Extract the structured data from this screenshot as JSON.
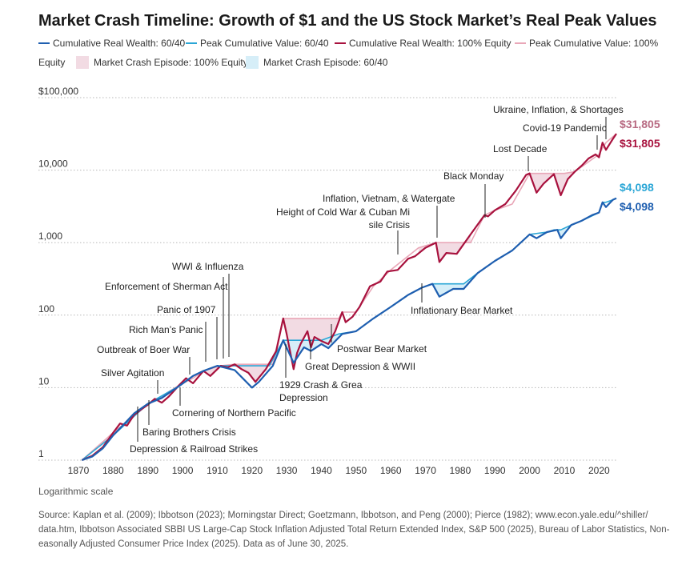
{
  "chart_data": {
    "type": "line",
    "title": "Market Crash Timeline: Growth of $1 and the US Stock Market’s Real Peak Values",
    "scale": "log",
    "xlim": [
      1870,
      2025
    ],
    "ylim": [
      1,
      100000
    ],
    "x_ticks": [
      "1870",
      "1880",
      "1890",
      "1900",
      "1910",
      "1920",
      "1930",
      "1940",
      "1950",
      "1960",
      "1970",
      "1980",
      "1990",
      "2000",
      "2010",
      "2020"
    ],
    "y_ticks": [
      "1",
      "10",
      "100",
      "1,000",
      "10,000",
      "$100,000"
    ],
    "y_tick_values": [
      1,
      10,
      100,
      1000,
      10000,
      100000
    ],
    "grid": true,
    "legend_placement": "top",
    "legend": [
      {
        "label": "Cumulative Real Wealth: 60/40",
        "kind": "line",
        "color": "#1f5fb0"
      },
      {
        "label": "Peak Cumulative Value: 60/40",
        "kind": "line",
        "color": "#2aa6d6"
      },
      {
        "label": "Cumulative Real Wealth: 100% Equity",
        "kind": "line",
        "color": "#a8123e"
      },
      {
        "label": "Peak Cumulative Value: 100%",
        "kind": "line",
        "color": "#e9a7b8"
      },
      {
        "label": "Equity",
        "kind": "text",
        "color": "#333333"
      },
      {
        "label": "Market Crash Episode: 100% Equity",
        "kind": "box",
        "color": "#f2dbe3"
      },
      {
        "label": "Market Crash Episode: 60/40",
        "kind": "box",
        "color": "#d6eef8"
      }
    ],
    "series": [
      {
        "name": "Cumulative Real Wealth: 100% Equity",
        "color": "#a8123e",
        "x": [
          1871,
          1874,
          1877,
          1880,
          1882,
          1884,
          1886,
          1888,
          1890,
          1892,
          1894,
          1896,
          1899,
          1901,
          1903,
          1906,
          1908,
          1911,
          1913,
          1915,
          1917,
          1919,
          1921,
          1924,
          1927,
          1929,
          1930,
          1932,
          1933,
          1934,
          1936,
          1937,
          1938,
          1940,
          1942,
          1944,
          1946,
          1947,
          1949,
          1951,
          1954,
          1957,
          1959,
          1962,
          1965,
          1967,
          1970,
          1973,
          1974,
          1976,
          1979,
          1983,
          1987,
          1988,
          1990,
          1993,
          1996,
          1999,
          2000,
          2002,
          2004,
          2007,
          2009,
          2011,
          2013,
          2015,
          2017,
          2019,
          2020,
          2021,
          2022,
          2024,
          2025
        ],
        "y": [
          1,
          1.15,
          1.5,
          2.4,
          3.2,
          3.0,
          4.2,
          5.0,
          5.8,
          7.0,
          6.2,
          7.5,
          10.8,
          13.5,
          11.5,
          17,
          14.5,
          20,
          19,
          21,
          18,
          16,
          12,
          18,
          32,
          90,
          55,
          18,
          30,
          40,
          60,
          36,
          50,
          44,
          40,
          60,
          110,
          80,
          95,
          130,
          250,
          290,
          400,
          420,
          600,
          650,
          850,
          1000,
          540,
          720,
          700,
          1300,
          2400,
          2300,
          2800,
          3400,
          5200,
          8600,
          9000,
          4900,
          6500,
          8800,
          4500,
          7500,
          9500,
          11500,
          14500,
          16500,
          15000,
          24000,
          19000,
          27000,
          31805
        ]
      },
      {
        "name": "Peak Cumulative Value: 100%",
        "color": "#e9a7b8",
        "x": [
          1871,
          1880,
          1890,
          1899,
          1903,
          1906,
          1911,
          1915,
          1920,
          1926,
          1929,
          1935,
          1937,
          1945,
          1946,
          1950,
          1955,
          1960,
          1968,
          1973,
          1974,
          1983,
          1987,
          1990,
          1995,
          2000,
          2005,
          2010,
          2013,
          2020,
          2022,
          2025
        ],
        "y": [
          1,
          2.4,
          5.8,
          10.8,
          13.5,
          17,
          20,
          21,
          21,
          21,
          90,
          90,
          90,
          90,
          110,
          110,
          250,
          420,
          850,
          1000,
          1000,
          1000,
          2400,
          2800,
          3400,
          9000,
          9000,
          9000,
          9500,
          16500,
          24000,
          31805
        ]
      },
      {
        "name": "Cumulative Real Wealth: 60/40",
        "color": "#1f5fb0",
        "x": [
          1871,
          1874,
          1877,
          1880,
          1883,
          1886,
          1890,
          1894,
          1899,
          1903,
          1906,
          1910,
          1915,
          1917,
          1920,
          1922,
          1926,
          1929,
          1932,
          1935,
          1937,
          1940,
          1942,
          1946,
          1950,
          1955,
          1960,
          1965,
          1969,
          1972,
          1974,
          1978,
          1981,
          1985,
          1990,
          1995,
          2000,
          2002,
          2005,
          2008,
          2009,
          2012,
          2015,
          2018,
          2020,
          2021,
          2022,
          2024,
          2025
        ],
        "y": [
          1,
          1.12,
          1.45,
          2.2,
          3.1,
          4.4,
          6.0,
          7.2,
          10.5,
          14.5,
          17,
          20,
          17.5,
          14,
          10,
          12,
          20,
          45,
          22,
          36,
          32,
          40,
          35,
          55,
          60,
          90,
          130,
          190,
          240,
          270,
          180,
          230,
          230,
          380,
          560,
          780,
          1300,
          1150,
          1400,
          1500,
          1150,
          1750,
          2000,
          2400,
          2600,
          3600,
          3100,
          3900,
          4098
        ]
      },
      {
        "name": "Peak Cumulative Value: 60/40",
        "color": "#2aa6d6",
        "x": [
          1871,
          1880,
          1890,
          1899,
          1903,
          1906,
          1910,
          1915,
          1920,
          1925,
          1929,
          1935,
          1940,
          1945,
          1950,
          1955,
          1960,
          1965,
          1969,
          1972,
          1974,
          1978,
          1981,
          1985,
          1990,
          1995,
          2000,
          2005,
          2007,
          2009,
          2012,
          2015,
          2020,
          2021,
          2022,
          2024,
          2025
        ],
        "y": [
          1,
          2.2,
          6.0,
          10.5,
          14.5,
          17,
          20,
          20,
          20,
          20,
          45,
          45,
          45,
          55,
          60,
          90,
          130,
          190,
          240,
          270,
          270,
          270,
          270,
          380,
          560,
          780,
          1300,
          1400,
          1500,
          1500,
          1750,
          2000,
          2600,
          3600,
          3600,
          3900,
          4098
        ]
      }
    ],
    "crash_episodes_100_equity": [
      [
        1929,
        1946
      ],
      [
        1968,
        1983
      ],
      [
        2000,
        2013
      ],
      [
        1906,
        1925
      ],
      [
        1912,
        1925
      ]
    ],
    "crash_episodes_60_40": [
      [
        1929,
        1945
      ],
      [
        1969,
        1985
      ],
      [
        2007,
        2012
      ]
    ],
    "annotations": [
      "Depression & Railroad Strikes",
      "Baring Brothers Crisis",
      "Cornering of Northern Pacific",
      "Silver Agitation",
      "Outbreak of Boer War",
      "Rich Man’s Panic",
      "Panic of 1907",
      "Enforcement of Sherman Act",
      "WWI & Influenza",
      "1929 Crash & Great Depression",
      "Great Depression & WWII",
      "Postwar Bear Market",
      "Height of Cold War & Cuban Missile Crisis",
      "Inflation, Vietnam, & Watergate",
      "Inflationary Bear Market",
      "Black Monday",
      "Lost Decade",
      "Covid-19 Pandemic",
      "Ukraine, Inflation, & Shortages"
    ],
    "end_labels": {
      "peak_100": "$31,805",
      "wealth_100": "$31,805",
      "peak_6040": "$4,098",
      "wealth_6040": "$4,098"
    }
  },
  "notes": {
    "scale_note": "Logarithmic scale",
    "source": "Source: Kaplan et al. (2009); Ibbotson (2023); Morningstar Direct; Goetzmann, Ibbotson, and Peng (2000); Pierce (1982); www.econ.yale.edu/^shiller/ data.htm, Ibbotson Associated SBBI US Large-Cap Stock Inflation Adjusted Total Return Extended Index, S&P 500 (2025), Bureau of Labor Statistics, Non-Seasonally Adjusted Consumer Price Index (2025). Data as of June 30, 2025."
  }
}
